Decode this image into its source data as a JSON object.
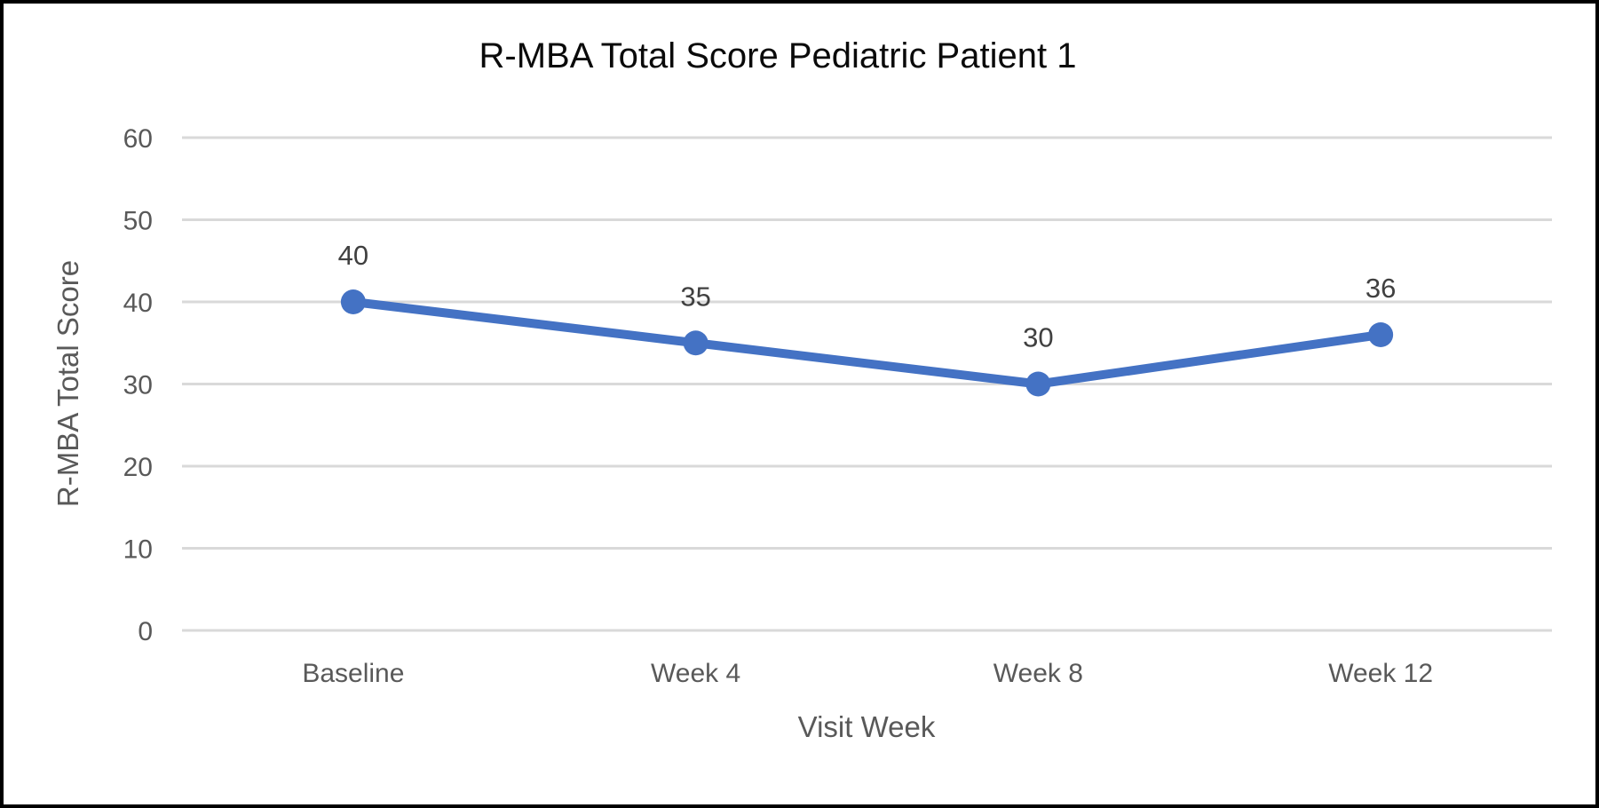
{
  "chart_data": {
    "type": "line",
    "title": "R-MBA Total Score Pediatric Patient 1",
    "xlabel": "Visit Week",
    "ylabel": "R-MBA Total Score",
    "categories": [
      "Baseline",
      "Week 4",
      "Week 8",
      "Week 12"
    ],
    "series": [
      {
        "name": "R-MBA Total Score",
        "values": [
          40,
          35,
          30,
          36
        ]
      }
    ],
    "data_labels_shown": true,
    "ylim": [
      0,
      60
    ],
    "ytick_step": 10,
    "ytick_labels": [
      "0",
      "10",
      "20",
      "30",
      "40",
      "50",
      "60"
    ],
    "grid": "horizontal",
    "legend": "none",
    "colors": {
      "line": "#4472C4",
      "marker": "#4472C4",
      "gridline": "#D9D9D9",
      "tick_label": "#595959",
      "axis_title": "#595959",
      "data_label": "#404040",
      "title": "#0A0A0A",
      "background": "#FFFFFF",
      "frame_border": "#000000"
    }
  }
}
